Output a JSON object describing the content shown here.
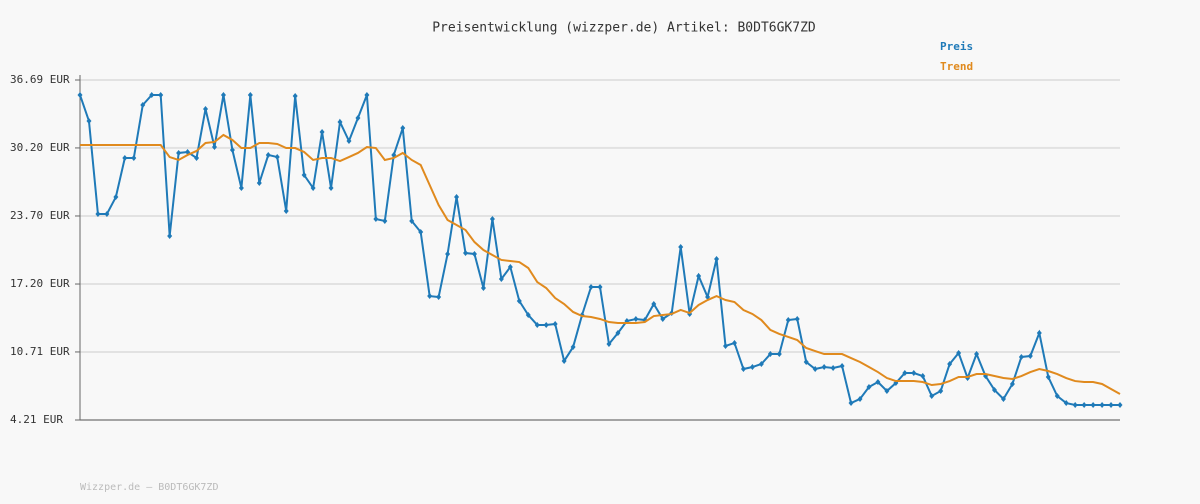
{
  "chart_data": {
    "type": "line",
    "title": "Preisentwicklung (wizzper.de) Artikel: B0DT6GK7ZD",
    "footer": "Wizzper.de – B0DT6GK7ZD",
    "ylim": [
      4.21,
      36.69
    ],
    "yticks": [
      {
        "value": 4.21,
        "label": "4.21 EUR"
      },
      {
        "value": 10.71,
        "label": "10.71 EUR"
      },
      {
        "value": 17.2,
        "label": "17.20 EUR"
      },
      {
        "value": 23.7,
        "label": "23.70 EUR"
      },
      {
        "value": 30.2,
        "label": "30.20 EUR"
      },
      {
        "value": 36.69,
        "label": "36.69 EUR"
      }
    ],
    "grid": true,
    "series": [
      {
        "name": "Preis",
        "color": "#1f7ab8",
        "markers": true,
        "values": [
          35.26,
          32.77,
          23.89,
          23.89,
          25.51,
          29.24,
          29.24,
          34.3,
          35.26,
          35.26,
          21.79,
          29.72,
          29.81,
          29.24,
          33.92,
          30.29,
          35.26,
          30.0,
          26.37,
          35.26,
          26.85,
          29.53,
          29.33,
          24.18,
          35.16,
          27.61,
          26.37,
          31.72,
          26.37,
          32.68,
          30.86,
          33.06,
          35.26,
          23.41,
          23.22,
          29.53,
          32.1,
          23.22,
          22.17,
          16.05,
          15.96,
          20.07,
          25.51,
          20.16,
          20.07,
          16.82,
          23.41,
          17.68,
          18.83,
          15.58,
          14.24,
          13.29,
          13.29,
          13.38,
          9.85,
          11.18,
          14.24,
          16.92,
          16.92,
          11.47,
          12.52,
          13.67,
          13.86,
          13.76,
          15.29,
          13.86,
          14.43,
          20.74,
          14.34,
          17.97,
          15.96,
          19.59,
          11.28,
          11.57,
          9.08,
          9.27,
          9.56,
          10.51,
          10.51,
          13.76,
          13.86,
          9.75,
          9.08,
          9.27,
          9.18,
          9.37,
          5.83,
          6.22,
          7.36,
          7.84,
          6.98,
          7.74,
          8.7,
          8.7,
          8.41,
          6.5,
          6.98,
          9.56,
          10.61,
          8.22,
          10.51,
          8.41,
          7.08,
          6.22,
          7.65,
          10.23,
          10.32,
          12.52,
          8.32,
          6.5,
          5.83,
          5.64,
          5.64,
          5.64,
          5.64,
          5.64,
          5.64
        ]
      },
      {
        "name": "Trend",
        "color": "#e08a1e",
        "markers": false,
        "values": [
          30.48,
          30.48,
          30.48,
          30.48,
          30.48,
          30.48,
          30.48,
          30.48,
          30.48,
          30.48,
          29.33,
          29.05,
          29.53,
          29.91,
          30.67,
          30.77,
          31.44,
          30.96,
          30.19,
          30.19,
          30.67,
          30.67,
          30.58,
          30.19,
          30.19,
          29.81,
          29.05,
          29.24,
          29.24,
          28.95,
          29.33,
          29.72,
          30.29,
          30.19,
          29.05,
          29.24,
          29.72,
          29.05,
          28.57,
          26.66,
          24.75,
          23.32,
          22.84,
          22.36,
          21.21,
          20.45,
          19.97,
          19.5,
          19.4,
          19.3,
          18.73,
          17.39,
          16.82,
          15.86,
          15.29,
          14.53,
          14.14,
          14.05,
          13.86,
          13.57,
          13.48,
          13.48,
          13.48,
          13.57,
          14.14,
          14.24,
          14.34,
          14.72,
          14.43,
          15.2,
          15.67,
          16.05,
          15.67,
          15.48,
          14.72,
          14.34,
          13.76,
          12.81,
          12.43,
          12.14,
          11.85,
          11.09,
          10.8,
          10.51,
          10.51,
          10.51,
          10.13,
          9.75,
          9.27,
          8.79,
          8.22,
          7.93,
          7.93,
          7.93,
          7.84,
          7.55,
          7.65,
          7.93,
          8.32,
          8.32,
          8.6,
          8.6,
          8.41,
          8.22,
          8.13,
          8.41,
          8.79,
          9.08,
          8.89,
          8.6,
          8.22,
          7.93,
          7.84,
          7.84,
          7.65,
          7.17,
          6.69
        ]
      }
    ]
  }
}
